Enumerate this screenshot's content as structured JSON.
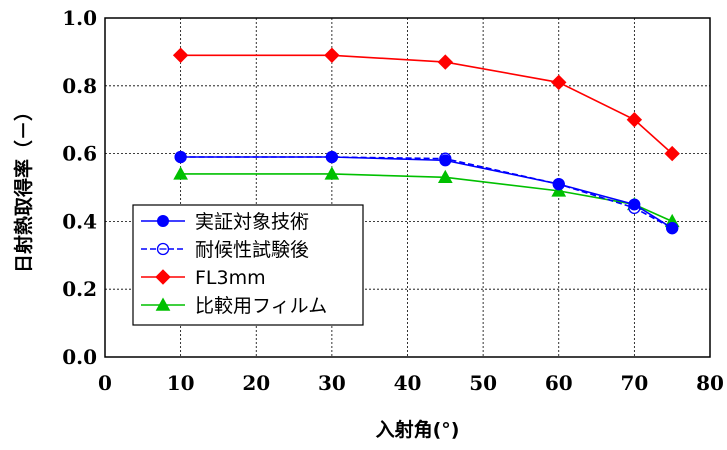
{
  "chart_data": {
    "type": "line",
    "title": "",
    "xlabel": "入射角(°)",
    "ylabel": "日射熱取得率（－）",
    "xlim": [
      0,
      80
    ],
    "ylim": [
      0.0,
      1.0
    ],
    "x_ticks": [
      "0",
      "10",
      "20",
      "30",
      "40",
      "50",
      "60",
      "70",
      "80"
    ],
    "y_ticks": [
      "0.0",
      "0.2",
      "0.4",
      "0.6",
      "0.8",
      "1.0"
    ],
    "grid": true,
    "legend_position": "lower-left",
    "series": [
      {
        "name": "実証対象技術",
        "color": "#0000ff",
        "marker": "filled-circle",
        "line": "solid",
        "x": [
          10,
          30,
          45,
          60,
          70,
          75
        ],
        "y": [
          0.59,
          0.59,
          0.58,
          0.51,
          0.45,
          0.38
        ]
      },
      {
        "name": "耐候性試験後",
        "color": "#0000ff",
        "marker": "open-circle",
        "line": "dashed",
        "x": [
          10,
          30,
          45,
          60,
          70,
          75
        ],
        "y": [
          0.59,
          0.59,
          0.585,
          0.51,
          0.44,
          0.38
        ]
      },
      {
        "name": "FL3mm",
        "color": "#ff0000",
        "marker": "diamond",
        "line": "solid",
        "x": [
          10,
          30,
          45,
          60,
          70,
          75
        ],
        "y": [
          0.89,
          0.89,
          0.87,
          0.81,
          0.7,
          0.6
        ]
      },
      {
        "name": "比較用フィルム",
        "color": "#00c000",
        "marker": "triangle",
        "line": "solid",
        "x": [
          10,
          30,
          45,
          60,
          70,
          75
        ],
        "y": [
          0.54,
          0.54,
          0.53,
          0.49,
          0.45,
          0.4
        ]
      }
    ]
  }
}
